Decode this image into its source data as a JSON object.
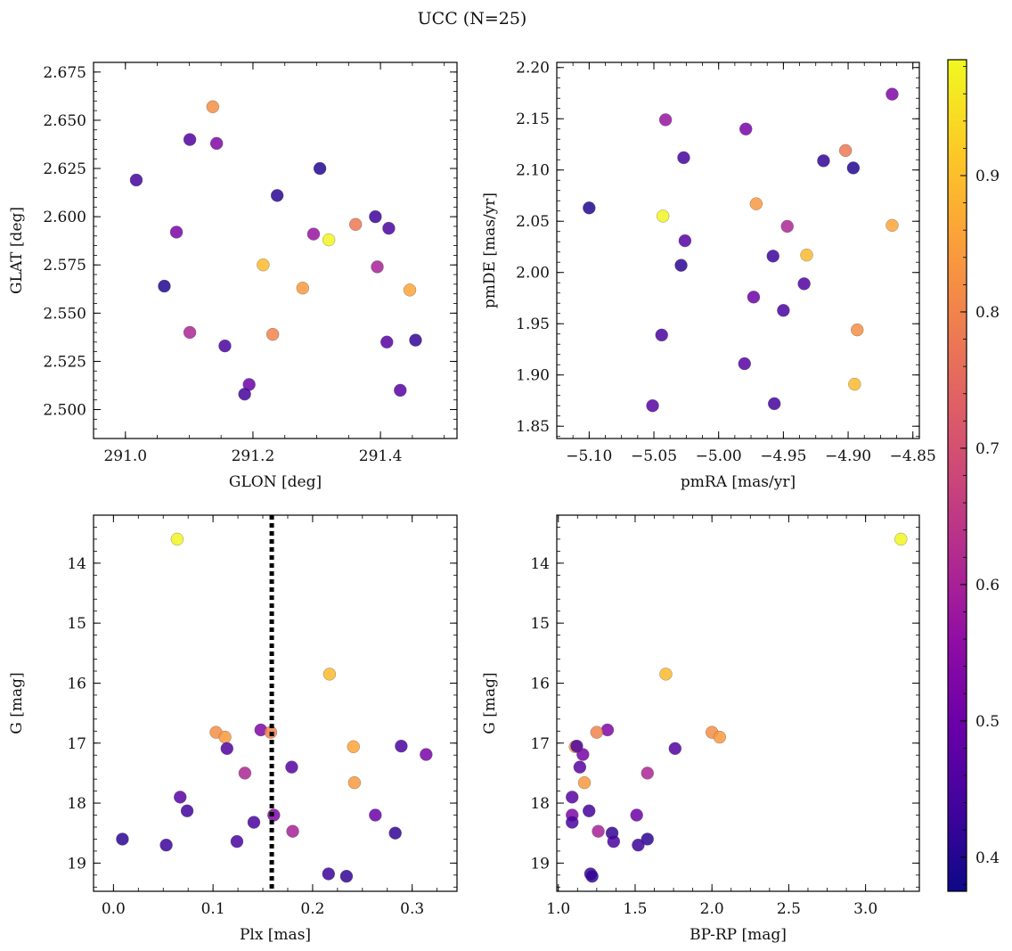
{
  "title": "UCC (N=25)",
  "colorbar": {
    "range": [
      0.375,
      0.985
    ],
    "ticks": [
      0.4,
      0.5,
      0.6,
      0.7,
      0.8,
      0.9
    ],
    "colormap": "plasma"
  },
  "chart_data": [
    {
      "type": "scatter",
      "id": "glon-glat",
      "xlabel": "GLON [deg]",
      "ylabel": "GLAT [deg]",
      "xlim": [
        290.95,
        291.52
      ],
      "ylim": [
        2.485,
        2.68
      ],
      "xticks": [
        291.0,
        291.2,
        291.4
      ],
      "xtick_labels": [
        "291.0",
        "291.2",
        "291.4"
      ],
      "yticks": [
        2.5,
        2.525,
        2.55,
        2.575,
        2.6,
        2.625,
        2.65,
        2.675
      ],
      "ytick_labels": [
        "2.500",
        "2.525",
        "2.550",
        "2.575",
        "2.600",
        "2.625",
        "2.650",
        "2.675"
      ],
      "y_inverted": false,
      "points": [
        {
          "x": 291.137,
          "y": 2.657,
          "c": 0.82
        },
        {
          "x": 291.101,
          "y": 2.64,
          "c": 0.46
        },
        {
          "x": 291.143,
          "y": 2.638,
          "c": 0.53
        },
        {
          "x": 291.305,
          "y": 2.625,
          "c": 0.4
        },
        {
          "x": 291.017,
          "y": 2.619,
          "c": 0.44
        },
        {
          "x": 291.238,
          "y": 2.611,
          "c": 0.41
        },
        {
          "x": 291.392,
          "y": 2.6,
          "c": 0.43
        },
        {
          "x": 291.361,
          "y": 2.596,
          "c": 0.78
        },
        {
          "x": 291.413,
          "y": 2.594,
          "c": 0.45
        },
        {
          "x": 291.08,
          "y": 2.592,
          "c": 0.52
        },
        {
          "x": 291.295,
          "y": 2.591,
          "c": 0.57
        },
        {
          "x": 291.319,
          "y": 2.588,
          "c": 0.98
        },
        {
          "x": 291.216,
          "y": 2.575,
          "c": 0.89
        },
        {
          "x": 291.395,
          "y": 2.574,
          "c": 0.6
        },
        {
          "x": 291.061,
          "y": 2.564,
          "c": 0.4
        },
        {
          "x": 291.278,
          "y": 2.563,
          "c": 0.84
        },
        {
          "x": 291.446,
          "y": 2.562,
          "c": 0.86
        },
        {
          "x": 291.101,
          "y": 2.54,
          "c": 0.61
        },
        {
          "x": 291.231,
          "y": 2.539,
          "c": 0.8
        },
        {
          "x": 291.455,
          "y": 2.536,
          "c": 0.42
        },
        {
          "x": 291.41,
          "y": 2.535,
          "c": 0.47
        },
        {
          "x": 291.156,
          "y": 2.533,
          "c": 0.45
        },
        {
          "x": 291.194,
          "y": 2.513,
          "c": 0.5
        },
        {
          "x": 291.431,
          "y": 2.51,
          "c": 0.47
        },
        {
          "x": 291.187,
          "y": 2.508,
          "c": 0.44
        }
      ]
    },
    {
      "type": "scatter",
      "id": "pmra-pmde",
      "xlabel": "pmRA [mas/yr]",
      "ylabel": "pmDE [mas/yr]",
      "xlim": [
        -5.125,
        -4.845
      ],
      "ylim": [
        1.838,
        2.205
      ],
      "xticks": [
        -5.1,
        -5.05,
        -5.0,
        -4.95,
        -4.9,
        -4.85
      ],
      "xtick_labels": [
        "−5.10",
        "−5.05",
        "−5.00",
        "−4.95",
        "−4.90",
        "−4.85"
      ],
      "yticks": [
        1.85,
        1.9,
        1.95,
        2.0,
        2.05,
        2.1,
        2.15,
        2.2
      ],
      "ytick_labels": [
        "1.85",
        "1.90",
        "1.95",
        "2.00",
        "2.05",
        "2.10",
        "2.15",
        "2.20"
      ],
      "y_inverted": false,
      "points": [
        {
          "x": -4.866,
          "y": 2.174,
          "c": 0.53
        },
        {
          "x": -5.041,
          "y": 2.149,
          "c": 0.57
        },
        {
          "x": -4.979,
          "y": 2.14,
          "c": 0.52
        },
        {
          "x": -4.902,
          "y": 2.119,
          "c": 0.78
        },
        {
          "x": -5.027,
          "y": 2.112,
          "c": 0.44
        },
        {
          "x": -4.919,
          "y": 2.109,
          "c": 0.42
        },
        {
          "x": -4.896,
          "y": 2.102,
          "c": 0.4
        },
        {
          "x": -4.971,
          "y": 2.067,
          "c": 0.84
        },
        {
          "x": -5.1,
          "y": 2.063,
          "c": 0.4
        },
        {
          "x": -4.866,
          "y": 2.046,
          "c": 0.86
        },
        {
          "x": -5.043,
          "y": 2.055,
          "c": 0.98
        },
        {
          "x": -4.947,
          "y": 2.045,
          "c": 0.61
        },
        {
          "x": -5.026,
          "y": 2.031,
          "c": 0.47
        },
        {
          "x": -4.932,
          "y": 2.017,
          "c": 0.89
        },
        {
          "x": -4.958,
          "y": 2.016,
          "c": 0.43
        },
        {
          "x": -5.029,
          "y": 2.007,
          "c": 0.41
        },
        {
          "x": -4.934,
          "y": 1.989,
          "c": 0.46
        },
        {
          "x": -4.973,
          "y": 1.976,
          "c": 0.5
        },
        {
          "x": -4.95,
          "y": 1.963,
          "c": 0.45
        },
        {
          "x": -4.893,
          "y": 1.944,
          "c": 0.82
        },
        {
          "x": -5.044,
          "y": 1.939,
          "c": 0.45
        },
        {
          "x": -4.98,
          "y": 1.911,
          "c": 0.47
        },
        {
          "x": -4.895,
          "y": 1.891,
          "c": 0.89
        },
        {
          "x": -4.957,
          "y": 1.872,
          "c": 0.44
        },
        {
          "x": -5.051,
          "y": 1.87,
          "c": 0.47
        }
      ]
    },
    {
      "type": "scatter",
      "id": "plx-g",
      "xlabel": "Plx [mas]",
      "ylabel": "G [mag]",
      "xlim": [
        -0.02,
        0.345
      ],
      "ylim": [
        13.2,
        19.47
      ],
      "xticks": [
        0.0,
        0.1,
        0.2,
        0.3
      ],
      "xtick_labels": [
        "0.0",
        "0.1",
        "0.2",
        "0.3"
      ],
      "yticks": [
        14,
        15,
        16,
        17,
        18,
        19
      ],
      "ytick_labels": [
        "14",
        "15",
        "16",
        "17",
        "18",
        "19"
      ],
      "y_inverted": true,
      "vline": {
        "x": 0.159,
        "style": "dotted",
        "color": "#000000"
      },
      "points": [
        {
          "x": 0.064,
          "y": 13.6,
          "c": 0.98
        },
        {
          "x": 0.217,
          "y": 15.85,
          "c": 0.89
        },
        {
          "x": 0.103,
          "y": 16.82,
          "c": 0.82
        },
        {
          "x": 0.112,
          "y": 16.9,
          "c": 0.84
        },
        {
          "x": 0.148,
          "y": 16.78,
          "c": 0.53
        },
        {
          "x": 0.158,
          "y": 16.82,
          "c": 0.8
        },
        {
          "x": 0.241,
          "y": 17.06,
          "c": 0.86
        },
        {
          "x": 0.289,
          "y": 17.05,
          "c": 0.45
        },
        {
          "x": 0.314,
          "y": 17.19,
          "c": 0.52
        },
        {
          "x": 0.114,
          "y": 17.09,
          "c": 0.46
        },
        {
          "x": 0.179,
          "y": 17.4,
          "c": 0.47
        },
        {
          "x": 0.132,
          "y": 17.5,
          "c": 0.61
        },
        {
          "x": 0.242,
          "y": 17.66,
          "c": 0.84
        },
        {
          "x": 0.067,
          "y": 17.9,
          "c": 0.47
        },
        {
          "x": 0.074,
          "y": 18.13,
          "c": 0.44
        },
        {
          "x": 0.161,
          "y": 18.2,
          "c": 0.53
        },
        {
          "x": 0.263,
          "y": 18.2,
          "c": 0.5
        },
        {
          "x": 0.141,
          "y": 18.32,
          "c": 0.45
        },
        {
          "x": 0.18,
          "y": 18.47,
          "c": 0.6
        },
        {
          "x": 0.283,
          "y": 18.5,
          "c": 0.42
        },
        {
          "x": 0.009,
          "y": 18.6,
          "c": 0.41
        },
        {
          "x": 0.124,
          "y": 18.64,
          "c": 0.45
        },
        {
          "x": 0.053,
          "y": 18.7,
          "c": 0.43
        },
        {
          "x": 0.216,
          "y": 19.18,
          "c": 0.43
        },
        {
          "x": 0.234,
          "y": 19.22,
          "c": 0.42
        }
      ]
    },
    {
      "type": "scatter",
      "id": "bprp-g",
      "xlabel": "BP-RP [mag]",
      "ylabel": "G [mag]",
      "xlim": [
        0.99,
        3.35
      ],
      "ylim": [
        13.2,
        19.47
      ],
      "xticks": [
        1.0,
        1.5,
        2.0,
        2.5,
        3.0
      ],
      "xtick_labels": [
        "1.0",
        "1.5",
        "2.0",
        "2.5",
        "3.0"
      ],
      "yticks": [
        14,
        15,
        16,
        17,
        18,
        19
      ],
      "ytick_labels": [
        "14",
        "15",
        "16",
        "17",
        "18",
        "19"
      ],
      "y_inverted": true,
      "points": [
        {
          "x": 3.23,
          "y": 13.6,
          "c": 0.98
        },
        {
          "x": 1.7,
          "y": 15.85,
          "c": 0.89
        },
        {
          "x": 2.0,
          "y": 16.82,
          "c": 0.82
        },
        {
          "x": 2.05,
          "y": 16.9,
          "c": 0.84
        },
        {
          "x": 1.32,
          "y": 16.78,
          "c": 0.53
        },
        {
          "x": 1.25,
          "y": 16.82,
          "c": 0.8
        },
        {
          "x": 1.11,
          "y": 17.06,
          "c": 0.86
        },
        {
          "x": 1.12,
          "y": 17.05,
          "c": 0.45
        },
        {
          "x": 1.16,
          "y": 17.19,
          "c": 0.52
        },
        {
          "x": 1.76,
          "y": 17.09,
          "c": 0.46
        },
        {
          "x": 1.14,
          "y": 17.4,
          "c": 0.47
        },
        {
          "x": 1.58,
          "y": 17.5,
          "c": 0.61
        },
        {
          "x": 1.17,
          "y": 17.66,
          "c": 0.84
        },
        {
          "x": 1.09,
          "y": 17.9,
          "c": 0.47
        },
        {
          "x": 1.2,
          "y": 18.13,
          "c": 0.44
        },
        {
          "x": 1.09,
          "y": 18.2,
          "c": 0.53
        },
        {
          "x": 1.51,
          "y": 18.2,
          "c": 0.5
        },
        {
          "x": 1.09,
          "y": 18.32,
          "c": 0.45
        },
        {
          "x": 1.26,
          "y": 18.47,
          "c": 0.6
        },
        {
          "x": 1.35,
          "y": 18.5,
          "c": 0.42
        },
        {
          "x": 1.58,
          "y": 18.6,
          "c": 0.41
        },
        {
          "x": 1.36,
          "y": 18.64,
          "c": 0.45
        },
        {
          "x": 1.52,
          "y": 18.7,
          "c": 0.43
        },
        {
          "x": 1.21,
          "y": 19.18,
          "c": 0.43
        },
        {
          "x": 1.22,
          "y": 19.22,
          "c": 0.42
        }
      ]
    }
  ]
}
